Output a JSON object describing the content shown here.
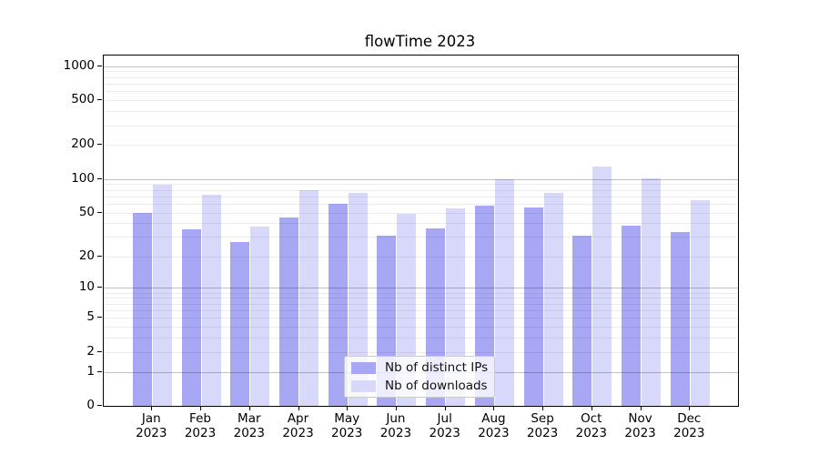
{
  "title": "flowTime 2023",
  "legend": {
    "items": [
      {
        "label": "Nb of distinct IPs",
        "color": "#a7a7f4"
      },
      {
        "label": "Nb of downloads",
        "color": "#d8d8fa"
      }
    ]
  },
  "colors": {
    "bar_dark": "#a7a7f4",
    "bar_light": "#d8d8fa",
    "major_grid": "rgba(0,0,0,0.24)",
    "minor_grid": "rgba(0,0,0,0.07)",
    "spine": "#000000",
    "text": "#000000"
  },
  "chart_data": {
    "type": "bar",
    "title": "flowTime 2023",
    "xlabel": "",
    "ylabel": "",
    "y_scale": "log1p",
    "ylim": [
      0,
      1240
    ],
    "y_ticks": [
      0,
      1,
      2,
      5,
      10,
      20,
      50,
      100,
      200,
      500,
      1000
    ],
    "grid": "both",
    "legend_position": "lower center",
    "months": [
      "Jan",
      "Feb",
      "Mar",
      "Apr",
      "May",
      "Jun",
      "Jul",
      "Aug",
      "Sep",
      "Oct",
      "Nov",
      "Dec"
    ],
    "year_label": "2023",
    "series": [
      {
        "name": "Nb of distinct IPs",
        "color": "#a7a7f4",
        "values": [
          50,
          35,
          27,
          45,
          60,
          31,
          36,
          58,
          55,
          31,
          38,
          33
        ]
      },
      {
        "name": "Nb of downloads",
        "color": "#d8d8fa",
        "values": [
          88,
          72,
          37,
          80,
          75,
          49,
          54,
          100,
          75,
          130,
          101,
          64
        ]
      }
    ]
  }
}
